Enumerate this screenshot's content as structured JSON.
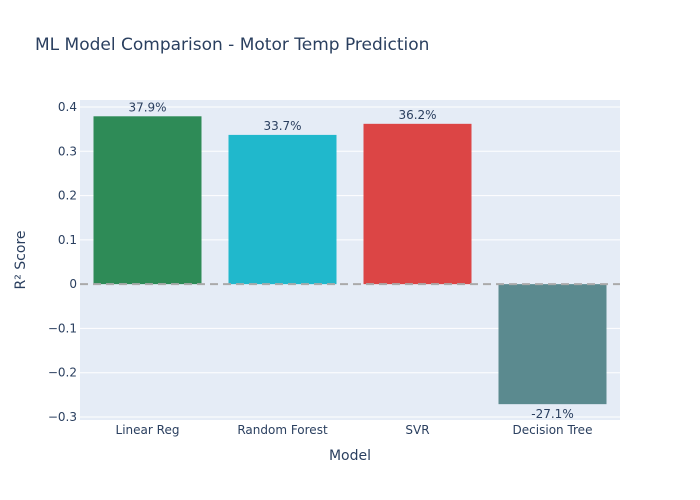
{
  "chart_data": {
    "type": "bar",
    "title": "ML Model Comparison - Motor Temp Prediction",
    "xlabel": "Model",
    "ylabel": "R² Score",
    "ylim": [
      -0.3,
      0.4
    ],
    "yticks": [
      -0.3,
      -0.2,
      -0.1,
      0,
      0.1,
      0.2,
      0.3,
      0.4
    ],
    "ytick_labels": [
      "−0.3",
      "−0.2",
      "−0.1",
      "0",
      "0.1",
      "0.2",
      "0.3",
      "0.4"
    ],
    "categories": [
      "Linear Reg",
      "Random Forest",
      "SVR",
      "Decision Tree"
    ],
    "values": [
      0.379,
      0.337,
      0.362,
      -0.271
    ],
    "data_labels": [
      "37.9%",
      "33.7%",
      "36.2%",
      "-27.1%"
    ],
    "colors": [
      "#2e8b57",
      "#20b8cc",
      "#dc4545",
      "#5b8a8f"
    ],
    "grid": true,
    "reference_line": {
      "y": 0,
      "style": "dashed",
      "color": "#aaaaaa"
    }
  }
}
